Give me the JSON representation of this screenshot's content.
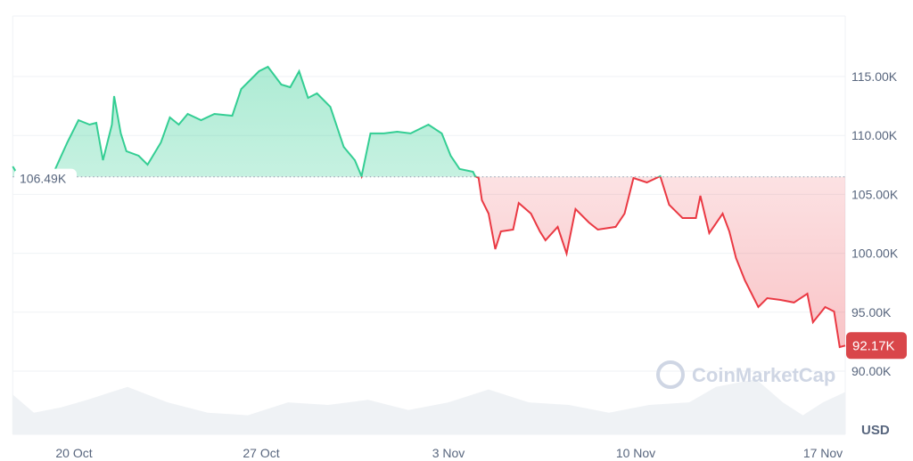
{
  "chart_data": {
    "type": "area",
    "title": "",
    "xlabel": "",
    "ylabel": "",
    "currency_label": "USD",
    "x_ticks": [
      "20 Oct",
      "27 Oct",
      "3 Nov",
      "10 Nov",
      "17 Nov"
    ],
    "y_ticks": [
      "90.00K",
      "95.00K",
      "100.00K",
      "105.00K",
      "110.00K",
      "115.00K"
    ],
    "ylim": [
      85.5,
      120.5
    ],
    "xlim": [
      "17 Oct 17:00",
      "17 Nov 20:00"
    ],
    "baseline": {
      "value": 106.49,
      "label": "106.49K"
    },
    "current": {
      "value": 92.17,
      "label": "92.17K"
    },
    "colors": {
      "up": "#16c784",
      "down": "#ea3943",
      "current_badge": "#d9464a",
      "volume": "#eff2f5",
      "grid": "#eff2f5",
      "watermark": "#cfd6e4"
    },
    "watermark": "CoinMarketCap",
    "grid": true,
    "price_unit": "K USD",
    "price": [
      [
        "17 Oct 17:00",
        107.37
      ],
      [
        "17 Oct 22:00",
        106.6
      ],
      [
        "19 Oct 06:00",
        106.9
      ],
      [
        "19 Oct 18:00",
        109.41
      ],
      [
        "20 Oct 04:00",
        111.3
      ],
      [
        "20 Oct 14:00",
        110.92
      ],
      [
        "20 Oct 20:00",
        111.07
      ],
      [
        "21 Oct 02:00",
        107.9
      ],
      [
        "21 Oct 10:00",
        110.92
      ],
      [
        "21 Oct 12:00",
        113.34
      ],
      [
        "21 Oct 18:00",
        110.17
      ],
      [
        "21 Oct 23:00",
        108.66
      ],
      [
        "22 Oct 10:00",
        108.28
      ],
      [
        "22 Oct 18:00",
        107.52
      ],
      [
        "23 Oct 06:00",
        109.41
      ],
      [
        "23 Oct 14:00",
        111.53
      ],
      [
        "23 Oct 22:00",
        110.92
      ],
      [
        "24 Oct 06:00",
        111.83
      ],
      [
        "24 Oct 18:00",
        111.3
      ],
      [
        "25 Oct 06:00",
        111.83
      ],
      [
        "25 Oct 22:00",
        111.68
      ],
      [
        "26 Oct 06:00",
        113.94
      ],
      [
        "26 Oct 22:00",
        115.45
      ],
      [
        "27 Oct 06:00",
        115.83
      ],
      [
        "27 Oct 18:00",
        114.32
      ],
      [
        "28 Oct 02:00",
        114.09
      ],
      [
        "28 Oct 10:00",
        115.45
      ],
      [
        "28 Oct 18:00",
        113.19
      ],
      [
        "29 Oct 02:00",
        113.57
      ],
      [
        "29 Oct 14:00",
        112.43
      ],
      [
        "30 Oct 02:00",
        109.03
      ],
      [
        "30 Oct 12:00",
        107.9
      ],
      [
        "30 Oct 18:00",
        106.54
      ],
      [
        "31 Oct 02:00",
        110.17
      ],
      [
        "31 Oct 14:00",
        110.17
      ],
      [
        "1 Nov 02:00",
        110.32
      ],
      [
        "1 Nov 14:00",
        110.17
      ],
      [
        "2 Nov 06:00",
        110.92
      ],
      [
        "2 Nov 18:00",
        110.17
      ],
      [
        "3 Nov 02:00",
        108.28
      ],
      [
        "3 Nov 10:00",
        107.15
      ],
      [
        "3 Nov 22:00",
        106.92
      ],
      [
        "4 Nov 00:00",
        106.54
      ],
      [
        "4 Nov 03:00",
        106.39
      ],
      [
        "4 Nov 06:00",
        104.5
      ],
      [
        "4 Nov 12:00",
        103.37
      ],
      [
        "4 Nov 18:00",
        100.35
      ],
      [
        "4 Nov 23:00",
        101.86
      ],
      [
        "5 Nov 10:00",
        102.01
      ],
      [
        "5 Nov 15:00",
        104.27
      ],
      [
        "6 Nov 02:00",
        103.37
      ],
      [
        "6 Nov 10:00",
        101.86
      ],
      [
        "6 Nov 15:00",
        101.1
      ],
      [
        "7 Nov 02:00",
        102.24
      ],
      [
        "7 Nov 10:00",
        99.97
      ],
      [
        "7 Nov 18:00",
        103.75
      ],
      [
        "8 Nov 06:00",
        102.61
      ],
      [
        "8 Nov 14:00",
        102.01
      ],
      [
        "9 Nov 06:00",
        102.24
      ],
      [
        "9 Nov 14:00",
        103.37
      ],
      [
        "9 Nov 22:00",
        106.39
      ],
      [
        "10 Nov 10:00",
        106.01
      ],
      [
        "10 Nov 22:00",
        106.54
      ],
      [
        "11 Nov 06:00",
        104.12
      ],
      [
        "11 Nov 18:00",
        102.99
      ],
      [
        "12 Nov 06:00",
        102.99
      ],
      [
        "12 Nov 10:00",
        104.88
      ],
      [
        "12 Nov 18:00",
        101.71
      ],
      [
        "13 Nov 06:00",
        103.37
      ],
      [
        "13 Nov 12:00",
        101.86
      ],
      [
        "13 Nov 18:00",
        99.59
      ],
      [
        "14 Nov 02:00",
        97.7
      ],
      [
        "14 Nov 14:00",
        95.44
      ],
      [
        "14 Nov 22:00",
        96.19
      ],
      [
        "15 Nov 10:00",
        96.04
      ],
      [
        "15 Nov 22:00",
        95.82
      ],
      [
        "16 Nov 10:00",
        96.57
      ],
      [
        "16 Nov 15:00",
        94.15
      ],
      [
        "17 Nov 02:00",
        95.44
      ],
      [
        "17 Nov 10:00",
        95.06
      ],
      [
        "17 Nov 15:00",
        92.04
      ],
      [
        "17 Nov 20:00",
        92.17
      ]
    ],
    "volume_relative": [
      [
        "17 Oct 17:00",
        0.7
      ],
      [
        "18 Oct 12:00",
        0.35
      ],
      [
        "19 Oct 12:00",
        0.45
      ],
      [
        "20 Oct 12:00",
        0.6
      ],
      [
        "22 Oct 00:00",
        0.85
      ],
      [
        "23 Oct 12:00",
        0.55
      ],
      [
        "25 Oct 00:00",
        0.35
      ],
      [
        "26 Oct 12:00",
        0.3
      ],
      [
        "28 Oct 00:00",
        0.55
      ],
      [
        "29 Oct 12:00",
        0.5
      ],
      [
        "31 Oct 00:00",
        0.6
      ],
      [
        "1 Nov 12:00",
        0.4
      ],
      [
        "3 Nov 00:00",
        0.55
      ],
      [
        "4 Nov 12:00",
        0.8
      ],
      [
        "6 Nov 00:00",
        0.55
      ],
      [
        "7 Nov 12:00",
        0.5
      ],
      [
        "9 Nov 00:00",
        0.35
      ],
      [
        "10 Nov 12:00",
        0.5
      ],
      [
        "12 Nov 00:00",
        0.55
      ],
      [
        "13 Nov 00:00",
        0.85
      ],
      [
        "14 Nov 12:00",
        1.0
      ],
      [
        "15 Nov 12:00",
        0.55
      ],
      [
        "16 Nov 06:00",
        0.3
      ],
      [
        "17 Nov 00:00",
        0.55
      ],
      [
        "17 Nov 20:00",
        0.75
      ]
    ]
  }
}
